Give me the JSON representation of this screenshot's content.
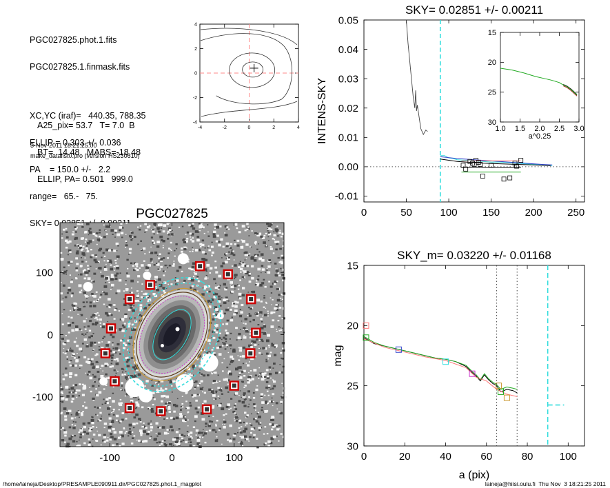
{
  "info": {
    "lines1": [
      "PGC027825.phot.1.fits",
      "PGC027825.1.finmask.fits",
      "",
      "XC,YC (iraf)=   440.35, 788.35",
      "ELLIP = 0.303 +/- 0.036",
      "PA    = 150.0 +/-   2.2",
      "range=   65.-   75.",
      "SKY= 0.02851 +/- 0.00211"
    ],
    "lines2": [
      "A25_pix= 53.7   T= 7.0  B",
      "BT=  14.48   MABS=-18.48",
      "ELLIP, PA= 0.501   999.0"
    ],
    "date": "3-Nov-2011 18:21:25.00",
    "program": "make_datalist0.pro (version HS230610)"
  },
  "footer": {
    "path": "/home/laineja/Desktop/PRESAMPLE090911.dir/PGC027825.phot.1_magplot",
    "user": "laineja@hiisi.oulu.fi  Thu Nov  3 18:21:25 2011"
  },
  "colors": {
    "cyan": "#33dddd",
    "red_dash": "#ff8888",
    "mask_box": "#cc0000",
    "green": "#22aa22",
    "pink": "#ff7777",
    "blue": "#3344cc",
    "magenta": "#cc33cc",
    "orange": "#cc9933"
  },
  "chart_data": [
    {
      "id": "centroid_contour",
      "type": "contour",
      "xlim": [
        -4,
        4
      ],
      "ylim": [
        -4,
        4
      ],
      "xticks": [
        "-4",
        "-2",
        "0",
        "2",
        "4"
      ],
      "yticks": [
        "-4",
        "-2",
        "0",
        "2",
        "4"
      ],
      "center_marker": [
        0.4,
        0.4
      ],
      "crosshair": [
        0,
        0
      ]
    },
    {
      "id": "intens_sky",
      "type": "line",
      "title": "SKY= 0.02851 +/- 0.00211",
      "xlabel": "",
      "ylabel": "INTENS-SKY",
      "xlim": [
        0,
        260
      ],
      "ylim": [
        -0.012,
        0.05
      ],
      "xticks": [
        "0",
        "50",
        "100",
        "150",
        "200",
        "250"
      ],
      "yticks": [
        "-0.01",
        "0.00",
        "0.01",
        "0.02",
        "0.03",
        "0.04",
        "0.05"
      ],
      "vline_cyan": 90,
      "profile": {
        "x": [
          50,
          52,
          55,
          58,
          60,
          61,
          62,
          63,
          65,
          67,
          70,
          73,
          75
        ],
        "y": [
          0.05,
          0.042,
          0.033,
          0.024,
          0.02,
          0.026,
          0.019,
          0.021,
          0.017,
          0.013,
          0.011,
          0.0125,
          0.012
        ]
      },
      "outer_lines": [
        {
          "color": "cyan",
          "x": [
            90,
            95,
            100,
            105,
            110,
            120,
            130,
            140,
            150,
            160,
            170,
            180,
            190,
            200,
            210,
            222
          ],
          "y": [
            0.0038,
            0.0038,
            0.003,
            0.0028,
            0.0024,
            0.0022,
            0.002,
            0.0018,
            0.0016,
            0.0016,
            0.0014,
            0.0012,
            0.001,
            0.0008,
            0.0006,
            0.0004
          ]
        },
        {
          "color": "black",
          "x": [
            90,
            100,
            110,
            120,
            140,
            160,
            180,
            200,
            220
          ],
          "y": [
            0.0026,
            0.0022,
            0.0018,
            0.0016,
            0.0012,
            0.001,
            0.0008,
            0.0006,
            0.0004
          ]
        },
        {
          "color": "blue",
          "x": [
            90,
            110,
            130,
            150,
            170,
            190,
            210,
            222
          ],
          "y": [
            0.0034,
            0.0028,
            0.0024,
            0.002,
            0.0016,
            0.0012,
            0.0008,
            0.0006
          ]
        },
        {
          "color": "green",
          "x": [
            115,
            185
          ],
          "y": [
            -0.0018,
            -0.0018
          ]
        },
        {
          "color": "pink",
          "x": [
            115,
            185
          ],
          "y": [
            0.002,
            0.002
          ]
        },
        {
          "color": "black",
          "x": [
            115,
            185
          ],
          "y": [
            -0.0002,
            -0.0002
          ]
        }
      ],
      "squares": {
        "x": [
          117,
          120,
          125,
          128,
          130,
          132,
          135,
          137,
          140,
          150,
          165,
          172,
          178,
          180,
          185
        ],
        "y": [
          0.0005,
          -0.0008,
          0.0018,
          0.0012,
          0.0008,
          0.0022,
          0.0015,
          0.0008,
          -0.0032,
          0.0005,
          -0.0042,
          -0.0038,
          0.0012,
          0.0002,
          0.0022
        ]
      },
      "inset": {
        "xlabel": "a^0.25",
        "xlim": [
          1.0,
          3.0
        ],
        "ylim": [
          30,
          15
        ],
        "xticks": [
          "1.0",
          "1.5",
          "2.0",
          "2.5",
          "3.0"
        ],
        "yticks": [
          "15",
          "20",
          "25",
          "30"
        ],
        "curve": {
          "x": [
            1.0,
            1.3,
            1.6,
            1.9,
            2.1,
            2.3,
            2.5,
            2.6,
            2.7,
            2.8,
            2.9,
            2.95
          ],
          "y": [
            21.0,
            21.3,
            21.8,
            22.4,
            22.7,
            23.0,
            23.4,
            23.8,
            24.1,
            24.6,
            25.2,
            25.5
          ]
        }
      }
    },
    {
      "id": "galaxy_image",
      "type": "image",
      "title": "PGC027825",
      "xlim": [
        -180,
        180
      ],
      "ylim": [
        -180,
        180
      ],
      "xticks": [
        "-100",
        "0",
        "100"
      ],
      "yticks": [
        "100",
        "0",
        "-100"
      ],
      "mask_boxes": [
        [
          45,
          110
        ],
        [
          90,
          97
        ],
        [
          -35,
          80
        ],
        [
          -68,
          57
        ],
        [
          127,
          57
        ],
        [
          -98,
          10
        ],
        [
          135,
          3
        ],
        [
          -107,
          -30
        ],
        [
          126,
          -30
        ],
        [
          -92,
          -75
        ],
        [
          100,
          -82
        ],
        [
          -68,
          -118
        ],
        [
          -18,
          -123
        ],
        [
          56,
          -120
        ]
      ],
      "mask_circles": [
        [
          18,
          122,
          8
        ],
        [
          -135,
          77,
          7
        ],
        [
          60,
          -45,
          13
        ],
        [
          -60,
          -85,
          14
        ],
        [
          20,
          -78,
          13
        ],
        [
          -42,
          -98,
          10
        ],
        [
          -22,
          -28,
          6
        ],
        [
          78,
          30,
          5
        ],
        [
          -110,
          -75,
          6
        ],
        [
          -40,
          95,
          6
        ]
      ]
    },
    {
      "id": "sky_mag",
      "type": "line",
      "title": "SKY_m=  0.03220 +/- 0.01168",
      "xlabel": "a (pix)",
      "ylabel": "mag",
      "xlim": [
        0,
        108
      ],
      "ylim": [
        30,
        15
      ],
      "xticks": [
        "0",
        "20",
        "40",
        "60",
        "80",
        "100"
      ],
      "yticks": [
        "15",
        "20",
        "25",
        "30"
      ],
      "vlines_dotted": [
        65,
        75
      ],
      "vline_cyan": 90,
      "series": [
        {
          "color": "black",
          "x": [
            0,
            5,
            10,
            15,
            20,
            25,
            30,
            35,
            40,
            45,
            50,
            53,
            55,
            57,
            59,
            61,
            63,
            65,
            67,
            70,
            73,
            75
          ],
          "y": [
            21.0,
            21.5,
            21.7,
            21.9,
            22.1,
            22.3,
            22.5,
            22.7,
            22.8,
            23.0,
            23.4,
            23.9,
            24.2,
            24.6,
            24.1,
            24.5,
            24.8,
            25.0,
            25.5,
            25.3,
            25.4,
            25.6
          ]
        },
        {
          "color": "green",
          "x": [
            0,
            5,
            10,
            15,
            20,
            25,
            30,
            35,
            40,
            45,
            50,
            53,
            55,
            57,
            59,
            61,
            63,
            65,
            67,
            70,
            73,
            75
          ],
          "y": [
            20.9,
            21.4,
            21.7,
            21.9,
            22.1,
            22.3,
            22.5,
            22.7,
            22.8,
            23.0,
            23.3,
            23.8,
            24.1,
            24.5,
            24.0,
            24.4,
            24.7,
            24.9,
            25.3,
            25.1,
            25.2,
            25.3
          ]
        },
        {
          "color": "pink",
          "x": [
            0,
            10,
            20,
            30,
            40,
            50,
            55,
            60,
            65,
            70,
            75
          ],
          "y": [
            21.1,
            21.8,
            22.2,
            22.6,
            22.9,
            23.5,
            24.3,
            24.6,
            25.3,
            25.7,
            25.9
          ]
        }
      ],
      "squares": [
        {
          "color": "pink",
          "x": 1,
          "y": 20.0
        },
        {
          "color": "green",
          "x": 1,
          "y": 21.0
        },
        {
          "color": "blue",
          "x": 17,
          "y": 22.0
        },
        {
          "color": "cyan",
          "x": 40,
          "y": 23.0
        },
        {
          "color": "magenta",
          "x": 53,
          "y": 24.0
        },
        {
          "color": "orange",
          "x": 66,
          "y": 25.0
        },
        {
          "color": "green",
          "x": 67,
          "y": 25.5
        },
        {
          "color": "orange",
          "x": 70,
          "y": 26.0
        }
      ],
      "cyan_dash": {
        "x": [
          90,
          98
        ],
        "y": [
          26.6,
          26.6
        ]
      }
    }
  ]
}
